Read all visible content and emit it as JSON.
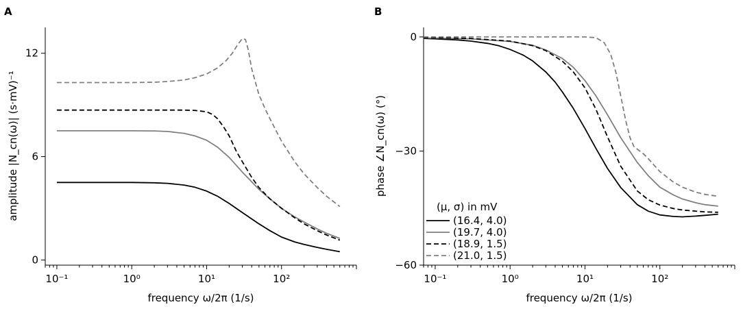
{
  "chart_data": [
    {
      "type": "line",
      "panel_label": "A",
      "xlabel": "frequency ω/2π   (1/s)",
      "ylabel": "amplitude |N_cn(ω)|   (s·mV)⁻¹",
      "xscale": "log",
      "xlim": [
        0.07,
        1000
      ],
      "ylim": [
        -0.3,
        13.5
      ],
      "xticks": [
        {
          "value": 0.1,
          "label": "10⁻¹"
        },
        {
          "value": 1,
          "label": "10⁰"
        },
        {
          "value": 10,
          "label": "10¹"
        },
        {
          "value": 100,
          "label": "10²"
        }
      ],
      "yticks": [
        {
          "value": 0,
          "label": "0"
        },
        {
          "value": 6,
          "label": "6"
        },
        {
          "value": 12,
          "label": "12"
        }
      ],
      "series": [
        {
          "name": "(16.4, 4.0)",
          "color": "#000000",
          "dash": "solid",
          "x": [
            0.1,
            0.3,
            1,
            2,
            3,
            5,
            7,
            10,
            14,
            20,
            30,
            50,
            70,
            100,
            150,
            200,
            300,
            400,
            600
          ],
          "y": [
            4.5,
            4.5,
            4.5,
            4.48,
            4.45,
            4.35,
            4.22,
            4.0,
            3.7,
            3.28,
            2.75,
            2.1,
            1.7,
            1.33,
            1.05,
            0.9,
            0.73,
            0.62,
            0.48
          ]
        },
        {
          "name": "(19.7, 4.0)",
          "color": "#808080",
          "dash": "solid",
          "x": [
            0.1,
            0.3,
            1,
            2,
            3,
            5,
            7,
            10,
            14,
            20,
            30,
            50,
            70,
            100,
            150,
            200,
            300,
            400,
            600
          ],
          "y": [
            7.5,
            7.5,
            7.5,
            7.49,
            7.46,
            7.35,
            7.2,
            6.95,
            6.55,
            5.95,
            5.1,
            4.1,
            3.55,
            3.0,
            2.5,
            2.2,
            1.8,
            1.55,
            1.25
          ]
        },
        {
          "name": "(18.9, 1.5)",
          "color": "#000000",
          "dash": "dashed",
          "x": [
            0.1,
            0.3,
            1,
            2,
            3,
            5,
            7,
            10,
            12,
            14,
            17,
            20,
            25,
            30,
            40,
            50,
            70,
            100,
            150,
            200,
            300,
            400,
            600
          ],
          "y": [
            8.7,
            8.7,
            8.7,
            8.7,
            8.7,
            8.7,
            8.68,
            8.6,
            8.45,
            8.2,
            7.7,
            7.2,
            6.3,
            5.7,
            4.8,
            4.2,
            3.55,
            3.0,
            2.45,
            2.1,
            1.7,
            1.45,
            1.15
          ]
        },
        {
          "name": "(21.0, 1.5)",
          "color": "#808080",
          "dash": "dashed",
          "x": [
            0.1,
            0.3,
            1,
            2,
            3,
            5,
            7,
            10,
            14,
            18,
            22,
            26,
            30,
            33,
            36,
            40,
            45,
            50,
            60,
            70,
            100,
            150,
            200,
            300,
            400,
            600
          ],
          "y": [
            10.3,
            10.3,
            10.3,
            10.32,
            10.36,
            10.45,
            10.58,
            10.8,
            11.15,
            11.55,
            12.0,
            12.5,
            12.85,
            12.8,
            12.2,
            11.1,
            10.3,
            9.6,
            8.8,
            8.2,
            6.9,
            5.7,
            5.0,
            4.2,
            3.7,
            3.1
          ]
        }
      ]
    },
    {
      "type": "line",
      "panel_label": "B",
      "xlabel": "frequency ω/2π   (1/s)",
      "ylabel": "phase ∠N_cn(ω)   (°)",
      "xscale": "log",
      "xlim": [
        0.07,
        1000
      ],
      "ylim": [
        -60,
        2.5
      ],
      "xticks": [
        {
          "value": 0.1,
          "label": "10⁻¹"
        },
        {
          "value": 1,
          "label": "10⁰"
        },
        {
          "value": 10,
          "label": "10¹"
        },
        {
          "value": 100,
          "label": "10²"
        }
      ],
      "yticks": [
        {
          "value": 0,
          "label": "0"
        },
        {
          "value": -30,
          "label": "−30"
        },
        {
          "value": -60,
          "label": "−60"
        }
      ],
      "legend": {
        "title": "(μ, σ) in mV",
        "location": "lower-left"
      },
      "series": [
        {
          "name": "(16.4, 4.0)",
          "color": "#000000",
          "dash": "solid",
          "x": [
            0.07,
            0.1,
            0.2,
            0.3,
            0.5,
            0.7,
            1,
            1.5,
            2,
            3,
            4,
            5,
            7,
            10,
            14,
            20,
            30,
            50,
            70,
            100,
            150,
            200,
            300,
            400,
            600
          ],
          "y": [
            -0.4,
            -0.5,
            -0.8,
            -1.1,
            -1.7,
            -2.3,
            -3.3,
            -4.8,
            -6.3,
            -9.2,
            -11.9,
            -14.5,
            -18.8,
            -24.1,
            -29.3,
            -34.6,
            -39.6,
            -44.1,
            -45.8,
            -46.8,
            -47.2,
            -47.3,
            -47.1,
            -46.9,
            -46.6
          ]
        },
        {
          "name": "(19.7, 4.0)",
          "color": "#808080",
          "dash": "solid",
          "x": [
            0.07,
            0.1,
            0.3,
            1,
            2,
            3,
            5,
            7,
            10,
            14,
            20,
            30,
            50,
            70,
            100,
            150,
            200,
            300,
            400,
            600
          ],
          "y": [
            -0.3,
            -0.3,
            -0.5,
            -1.2,
            -2.2,
            -3.4,
            -5.7,
            -8.0,
            -11.5,
            -15.5,
            -20.5,
            -26.5,
            -33.0,
            -36.5,
            -39.5,
            -41.5,
            -42.6,
            -43.6,
            -44.1,
            -44.5
          ]
        },
        {
          "name": "(18.9, 1.5)",
          "color": "#000000",
          "dash": "dashed",
          "x": [
            0.07,
            0.1,
            0.3,
            1,
            2,
            3,
            5,
            7,
            10,
            14,
            20,
            30,
            50,
            70,
            100,
            150,
            200,
            300,
            400,
            600
          ],
          "y": [
            -0.2,
            -0.2,
            -0.4,
            -1.1,
            -2.3,
            -3.6,
            -6.4,
            -9.2,
            -13.4,
            -19.0,
            -26.3,
            -34.0,
            -40.5,
            -42.8,
            -44.2,
            -45.1,
            -45.5,
            -45.8,
            -46.0,
            -46.1
          ]
        },
        {
          "name": "(21.0, 1.5)",
          "color": "#808080",
          "dash": "dashed",
          "x": [
            0.07,
            0.3,
            1,
            5,
            10,
            14,
            18,
            22,
            26,
            30,
            35,
            40,
            45,
            50,
            60,
            70,
            80,
            100,
            150,
            200,
            300,
            400,
            600
          ],
          "y": [
            0,
            0,
            0,
            0,
            0,
            -0.2,
            -1.5,
            -4.5,
            -9.5,
            -15.5,
            -22.0,
            -26.5,
            -28.8,
            -29.5,
            -30.7,
            -32.0,
            -33.3,
            -35.4,
            -38.1,
            -39.5,
            -40.8,
            -41.4,
            -41.9
          ]
        }
      ]
    }
  ]
}
